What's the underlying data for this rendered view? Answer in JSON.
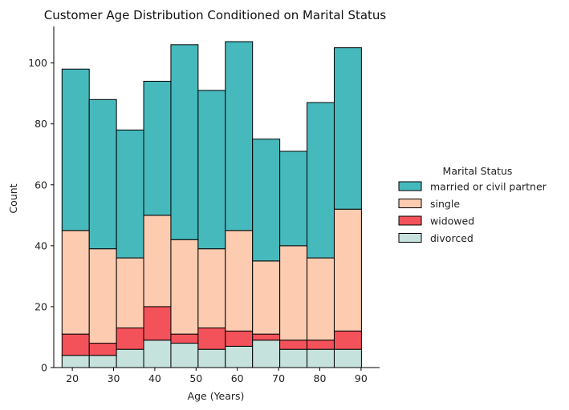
{
  "chart_data": {
    "type": "bar",
    "stacked": true,
    "title": "Customer Age Distribution Conditioned on Marital Status",
    "xlabel": "Age (Years)",
    "ylabel": "Count",
    "xlim": [
      15.5,
      94.5
    ],
    "ylim": [
      0,
      112
    ],
    "x_ticks": [
      20,
      30,
      40,
      50,
      60,
      70,
      80,
      90
    ],
    "y_ticks": [
      0,
      20,
      40,
      60,
      80,
      100
    ],
    "bins": [
      [
        17.5,
        24.1
      ],
      [
        24.1,
        30.7
      ],
      [
        30.7,
        37.3
      ],
      [
        37.3,
        43.9
      ],
      [
        43.9,
        50.5
      ],
      [
        50.5,
        57.1
      ],
      [
        57.1,
        63.7
      ],
      [
        63.7,
        70.3
      ],
      [
        70.3,
        76.9
      ],
      [
        76.9,
        83.5
      ],
      [
        83.5,
        90.1
      ]
    ],
    "series": [
      {
        "name": "divorced",
        "color": "#c6e2dc",
        "values": [
          4,
          4,
          6,
          9,
          8,
          6,
          7,
          9,
          6,
          6,
          6
        ]
      },
      {
        "name": "widowed",
        "color": "#f4525a",
        "values": [
          7,
          4,
          7,
          11,
          3,
          7,
          5,
          2,
          3,
          3,
          6
        ]
      },
      {
        "name": "single",
        "color": "#fdcbb0",
        "values": [
          34,
          31,
          23,
          30,
          31,
          26,
          33,
          24,
          31,
          27,
          40
        ]
      },
      {
        "name": "married or civil partner",
        "color": "#46b9bd",
        "values": [
          53,
          49,
          42,
          44,
          64,
          52,
          62,
          40,
          31,
          51,
          53
        ]
      }
    ],
    "grid": false,
    "legend": {
      "title": "Marital Status",
      "placement": "right",
      "order": [
        "married or civil partner",
        "single",
        "widowed",
        "divorced"
      ]
    }
  }
}
